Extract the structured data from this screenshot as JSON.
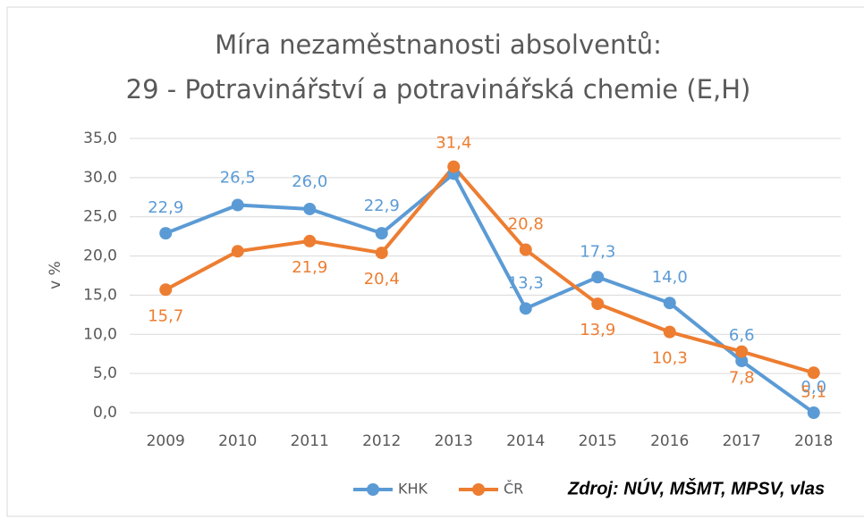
{
  "chart_data": {
    "type": "line",
    "title": [
      "Míra nezaměstnanosti absolventů:",
      "29 - Potravinářství a potravinářská chemie (E,H)"
    ],
    "ylabel": "v %",
    "source": "Zdroj: NÚV, MŠMT, MPSV, vlas",
    "categories": [
      "2009",
      "2010",
      "2011",
      "2012",
      "2013",
      "2014",
      "2015",
      "2016",
      "2017",
      "2018"
    ],
    "series": [
      {
        "name": "KHK",
        "color": "#5b9bd5",
        "values": [
          22.9,
          26.5,
          26.0,
          22.9,
          30.5,
          13.3,
          17.3,
          14.0,
          6.6,
          0.0
        ],
        "value_labels": [
          "22,9",
          "26,5",
          "26,0",
          "22,9",
          null,
          "13,3",
          "17,3",
          "14,0",
          "6,6",
          "0,0"
        ]
      },
      {
        "name": "ČR",
        "color": "#ed7d31",
        "values": [
          15.7,
          20.6,
          21.9,
          20.4,
          31.4,
          20.8,
          13.9,
          10.3,
          7.8,
          5.1
        ],
        "value_labels": [
          "15,7",
          null,
          "21,9",
          "20,4",
          "31,4",
          "20,8",
          "13,9",
          "10,3",
          "7,8",
          "5,1"
        ]
      }
    ],
    "ylim": [
      0,
      35
    ],
    "yticks": [
      {
        "value": 0,
        "label": "0,0"
      },
      {
        "value": 5,
        "label": "5,0"
      },
      {
        "value": 10,
        "label": "10,0"
      },
      {
        "value": 15,
        "label": "15,0"
      },
      {
        "value": 20,
        "label": "20,0"
      },
      {
        "value": 25,
        "label": "25,0"
      },
      {
        "value": 30,
        "label": "30,0"
      },
      {
        "value": 35,
        "label": "35,0"
      }
    ],
    "grid": true,
    "legend": "bottom"
  }
}
